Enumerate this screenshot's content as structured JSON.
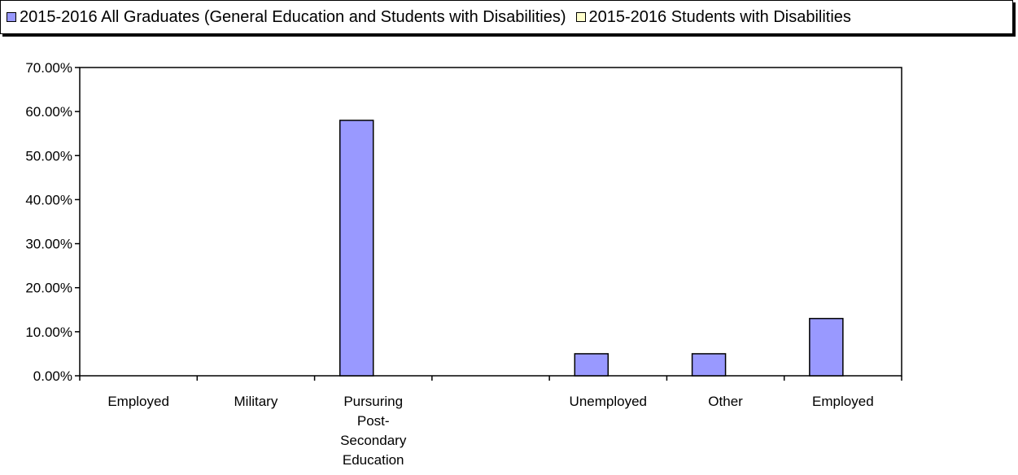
{
  "chart_data": {
    "type": "bar",
    "categories": [
      "Employed",
      "Military",
      "Pursuring Post-Secondary Education",
      "",
      "Unemployed",
      "Other",
      "Employed"
    ],
    "category_lines": [
      [
        "Employed"
      ],
      [
        "Military"
      ],
      [
        "Pursuring",
        "Post-",
        "Secondary",
        "Education"
      ],
      [],
      [
        "Unemployed"
      ],
      [
        "Other"
      ],
      [
        "Employed"
      ]
    ],
    "series": [
      {
        "name": "2015-2016 All Graduates (General Education and Students with Disabilities)",
        "color": "#9999ff",
        "values": [
          0,
          0,
          58,
          0,
          5,
          5,
          13
        ]
      },
      {
        "name": "2015-2016 Students with Disabilities",
        "color": "#ffffcc",
        "values": [
          0,
          0,
          0,
          0,
          0,
          0,
          0
        ]
      }
    ],
    "ylim": [
      0,
      70
    ],
    "yticks": [
      "0.00%",
      "10.00%",
      "20.00%",
      "30.00%",
      "40.00%",
      "50.00%",
      "60.00%",
      "70.00%"
    ],
    "legend_position": "top",
    "grid": false
  }
}
